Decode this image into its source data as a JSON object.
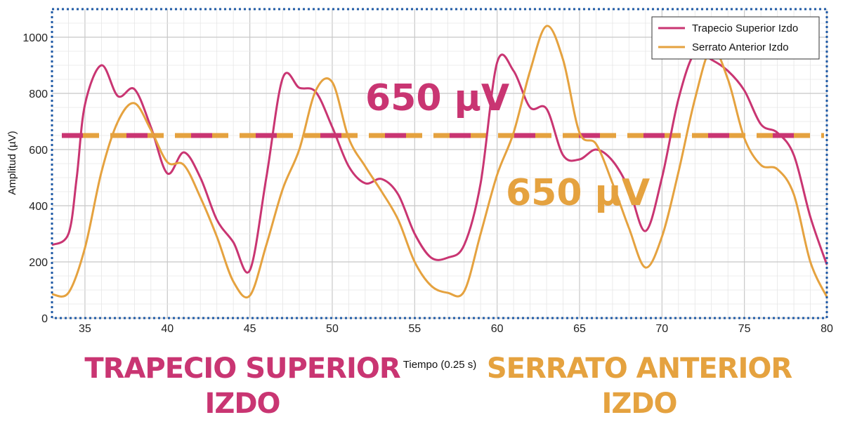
{
  "colors": {
    "trapecio": "#c93572",
    "serrato": "#e5a23f",
    "frame": "#1f5aa6",
    "grid_major": "#c8c8c8",
    "grid_minor": "#e6e6e6"
  },
  "labels": {
    "trapecio_threshold": "650 µV",
    "serrato_threshold": "650 µV",
    "caption_trapecio_line1": "TRAPECIO SUPERIOR",
    "caption_trapecio_line2": "IZDO",
    "caption_serrato_line1": "SERRATO ANTERIOR",
    "caption_serrato_line2": "IZDO"
  },
  "chart_data": {
    "type": "line",
    "xlabel": "Tiempo (0.25 s)",
    "ylabel": "Amplitud (µV)",
    "xlim": [
      33,
      80
    ],
    "ylim": [
      0,
      1100
    ],
    "xticks": [
      35,
      40,
      45,
      50,
      55,
      60,
      65,
      70,
      75,
      80
    ],
    "yticks": [
      0,
      200,
      400,
      600,
      800,
      1000
    ],
    "grid": true,
    "legend_position": "top-right",
    "thresholds": [
      {
        "series": "Trapecio Superior Izdo",
        "value": 650,
        "style": "dashed"
      },
      {
        "series": "Serrato Anterior Izdo",
        "value": 650,
        "style": "dashed"
      }
    ],
    "series": [
      {
        "name": "Trapecio Superior Izdo",
        "color": "#c93572",
        "points": [
          [
            33,
            260
          ],
          [
            34,
            300
          ],
          [
            34.5,
            500
          ],
          [
            35,
            760
          ],
          [
            36,
            900
          ],
          [
            37,
            790
          ],
          [
            38,
            815
          ],
          [
            39,
            680
          ],
          [
            40,
            515
          ],
          [
            41,
            590
          ],
          [
            42,
            500
          ],
          [
            43,
            350
          ],
          [
            44,
            270
          ],
          [
            45,
            170
          ],
          [
            46,
            500
          ],
          [
            47,
            855
          ],
          [
            48,
            820
          ],
          [
            49,
            805
          ],
          [
            50,
            680
          ],
          [
            51,
            540
          ],
          [
            52,
            480
          ],
          [
            53,
            495
          ],
          [
            54,
            440
          ],
          [
            55,
            300
          ],
          [
            56,
            215
          ],
          [
            57,
            215
          ],
          [
            58,
            260
          ],
          [
            59,
            480
          ],
          [
            60,
            910
          ],
          [
            61,
            880
          ],
          [
            62,
            750
          ],
          [
            63,
            745
          ],
          [
            64,
            580
          ],
          [
            65,
            565
          ],
          [
            66,
            600
          ],
          [
            67,
            560
          ],
          [
            68,
            460
          ],
          [
            69,
            310
          ],
          [
            70,
            500
          ],
          [
            71,
            780
          ],
          [
            72,
            945
          ],
          [
            73,
            920
          ],
          [
            74,
            880
          ],
          [
            75,
            810
          ],
          [
            76,
            690
          ],
          [
            77,
            660
          ],
          [
            78,
            580
          ],
          [
            79,
            360
          ],
          [
            80,
            190
          ]
        ]
      },
      {
        "name": "Serrato Anterior Izdo",
        "color": "#e5a23f",
        "points": [
          [
            33,
            85
          ],
          [
            34,
            90
          ],
          [
            35,
            250
          ],
          [
            36,
            520
          ],
          [
            37,
            700
          ],
          [
            38,
            765
          ],
          [
            39,
            670
          ],
          [
            40,
            555
          ],
          [
            41,
            545
          ],
          [
            42,
            430
          ],
          [
            43,
            290
          ],
          [
            44,
            130
          ],
          [
            45,
            80
          ],
          [
            46,
            260
          ],
          [
            47,
            460
          ],
          [
            48,
            600
          ],
          [
            49,
            810
          ],
          [
            50,
            840
          ],
          [
            51,
            640
          ],
          [
            52,
            540
          ],
          [
            53,
            450
          ],
          [
            54,
            350
          ],
          [
            55,
            200
          ],
          [
            56,
            115
          ],
          [
            57,
            90
          ],
          [
            58,
            95
          ],
          [
            59,
            300
          ],
          [
            60,
            510
          ],
          [
            61,
            660
          ],
          [
            62,
            880
          ],
          [
            63,
            1040
          ],
          [
            64,
            920
          ],
          [
            65,
            660
          ],
          [
            66,
            620
          ],
          [
            67,
            480
          ],
          [
            68,
            320
          ],
          [
            69,
            180
          ],
          [
            70,
            290
          ],
          [
            71,
            520
          ],
          [
            72,
            780
          ],
          [
            73,
            960
          ],
          [
            74,
            850
          ],
          [
            75,
            640
          ],
          [
            76,
            545
          ],
          [
            77,
            530
          ],
          [
            78,
            440
          ],
          [
            79,
            200
          ],
          [
            80,
            75
          ]
        ]
      }
    ]
  }
}
